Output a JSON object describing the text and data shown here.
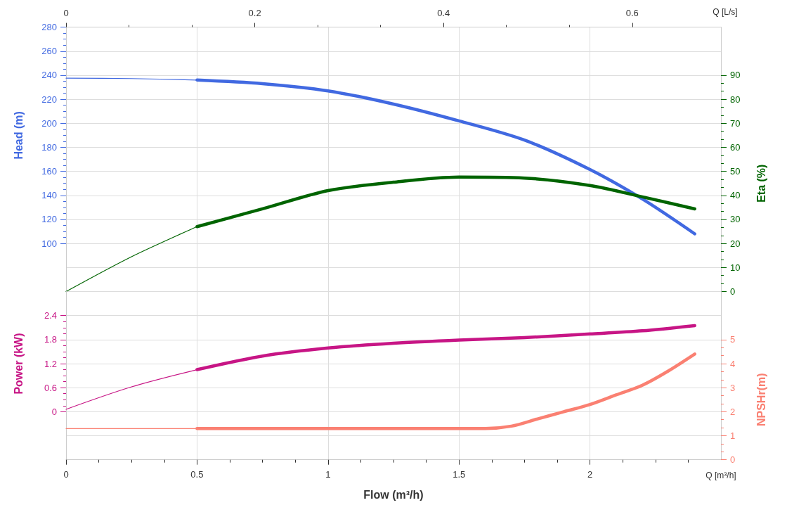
{
  "chart_data": [
    {
      "type": "line",
      "x2label": "Q [L/s]",
      "ylabel": "Head (m)",
      "y2label": "Eta (%)",
      "xlim": [
        0,
        2.5
      ],
      "xticks": [
        0,
        0.5,
        1,
        1.5,
        2
      ],
      "x2lim": [
        0,
        0.694
      ],
      "x2ticks": [
        0,
        0.2,
        0.4,
        0.6
      ],
      "ylim": [
        60,
        280
      ],
      "yticks": [
        100,
        120,
        140,
        160,
        180,
        200,
        220,
        240,
        260,
        280
      ],
      "y2lim": [
        0,
        110
      ],
      "y2ticks": [
        0,
        10,
        20,
        30,
        40,
        50,
        60,
        70,
        80,
        90
      ],
      "tick_labels": "y",
      "grid": true,
      "series": [
        {
          "color": "#4169e1",
          "x": [
            0,
            0.25,
            0.5
          ],
          "values": [
            237.5,
            237.2,
            236
          ]
        },
        {
          "color": "#4169e1",
          "x": [
            0.5,
            0.75,
            1,
            1.25,
            1.5,
            1.75,
            2,
            2.2,
            2.4
          ],
          "values": [
            236,
            233,
            227,
            216,
            202,
            186,
            161.5,
            137,
            108
          ]
        },
        {
          "color": "#006400",
          "axis": "y2",
          "x": [
            0,
            0.25,
            0.5
          ],
          "values": [
            0,
            14.5,
            27
          ]
        },
        {
          "color": "#006400",
          "axis": "y2",
          "x": [
            0.5,
            0.75,
            1,
            1.25,
            1.5,
            1.75,
            2,
            2.2,
            2.4
          ],
          "values": [
            27,
            34.4,
            42,
            45.5,
            47.6,
            47.2,
            44.1,
            39.4,
            34.4
          ]
        }
      ]
    },
    {
      "type": "line",
      "xlabel": "Flow (m³/h)",
      "ylabel": "Power (kW)",
      "y2label": "NPSHr(m)",
      "annotations": [
        "Q [m³/h]"
      ],
      "xlim": [
        0,
        2.5
      ],
      "xticks": [
        0,
        0.5,
        1,
        1.5,
        2
      ],
      "ylim": [
        -1.2,
        3
      ],
      "yticks": [
        0,
        0.6,
        1.2,
        1.8,
        2.4
      ],
      "y2lim": [
        0,
        7
      ],
      "y2ticks": [
        0,
        1,
        2,
        3,
        4,
        5
      ],
      "grid": true,
      "series": [
        {
          "color": "#c71585",
          "x": [
            0,
            0.25,
            0.5
          ],
          "values": [
            0.06,
            0.62,
            1.05
          ]
        },
        {
          "color": "#c71585",
          "x": [
            0.5,
            0.75,
            1,
            1.25,
            1.5,
            1.75,
            2,
            2.2,
            2.4
          ],
          "values": [
            1.05,
            1.39,
            1.59,
            1.71,
            1.79,
            1.85,
            1.94,
            2.02,
            2.15
          ]
        },
        {
          "color": "#fa8072",
          "axis": "y2",
          "x": [
            0,
            0.25,
            0.5
          ],
          "values": [
            1.3,
            1.3,
            1.3
          ]
        },
        {
          "color": "#fa8072",
          "axis": "y2",
          "x": [
            0.5,
            0.75,
            1,
            1.25,
            1.5,
            1.6,
            1.7,
            1.8,
            1.9,
            2,
            2.1,
            2.2,
            2.3,
            2.4
          ],
          "values": [
            1.3,
            1.3,
            1.3,
            1.3,
            1.3,
            1.3,
            1.4,
            1.7,
            2,
            2.3,
            2.7,
            3.1,
            3.7,
            4.4
          ]
        }
      ]
    }
  ]
}
